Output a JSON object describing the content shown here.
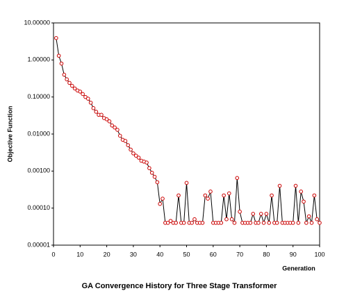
{
  "chart_data": {
    "type": "line",
    "title": "GA Convergence History for Three Stage Transformer",
    "x_label": "Generation",
    "y_label": "Objective Function",
    "log_y": true,
    "grid": false,
    "xlim": [
      0,
      100
    ],
    "xticks": [
      0,
      10,
      20,
      30,
      40,
      50,
      60,
      70,
      80,
      90,
      100
    ],
    "ylim": [
      1e-05,
      10
    ],
    "yticks": [
      {
        "value": 10,
        "label": "10.00000"
      },
      {
        "value": 1,
        "label": "1.00000"
      },
      {
        "value": 0.1,
        "label": "0.10000"
      },
      {
        "value": 0.01,
        "label": "0.01000"
      },
      {
        "value": 0.001,
        "label": "0.00100"
      },
      {
        "value": 0.0001,
        "label": "0.00010"
      },
      {
        "value": 1e-05,
        "label": "0.00001"
      }
    ],
    "line_color": "#000000",
    "marker_color": "#cc0000",
    "x": [
      1,
      2,
      3,
      4,
      5,
      6,
      7,
      8,
      9,
      10,
      11,
      12,
      13,
      14,
      15,
      16,
      17,
      18,
      19,
      20,
      21,
      22,
      23,
      24,
      25,
      26,
      27,
      28,
      29,
      30,
      31,
      32,
      33,
      34,
      35,
      36,
      37,
      38,
      39,
      40,
      41,
      42,
      43,
      44,
      45,
      46,
      47,
      48,
      49,
      50,
      51,
      52,
      53,
      54,
      55,
      56,
      57,
      58,
      59,
      60,
      61,
      62,
      63,
      64,
      65,
      66,
      67,
      68,
      69,
      70,
      71,
      72,
      73,
      74,
      75,
      76,
      77,
      78,
      79,
      80,
      81,
      82,
      83,
      84,
      85,
      86,
      87,
      88,
      89,
      90,
      91,
      92,
      93,
      94,
      95,
      96,
      97,
      98,
      99,
      100
    ],
    "values": [
      3.9,
      1.3,
      0.8,
      0.4,
      0.3,
      0.24,
      0.2,
      0.17,
      0.15,
      0.14,
      0.12,
      0.1,
      0.09,
      0.07,
      0.05,
      0.04,
      0.033,
      0.033,
      0.027,
      0.025,
      0.022,
      0.017,
      0.015,
      0.013,
      0.009,
      0.007,
      0.0065,
      0.005,
      0.0038,
      0.003,
      0.0026,
      0.0023,
      0.0019,
      0.0018,
      0.0017,
      0.0012,
      0.0009,
      0.0007,
      0.0005,
      0.00013,
      0.00018,
      4e-05,
      4e-05,
      4.5e-05,
      4e-05,
      4e-05,
      0.00022,
      4e-05,
      4e-05,
      0.00048,
      4e-05,
      4e-05,
      5e-05,
      4e-05,
      4e-05,
      4e-05,
      0.00022,
      0.00018,
      0.00028,
      4e-05,
      4e-05,
      4e-05,
      4e-05,
      0.00022,
      5e-05,
      0.00025,
      5e-05,
      4e-05,
      0.00065,
      8e-05,
      4e-05,
      4e-05,
      4e-05,
      4e-05,
      7e-05,
      4e-05,
      4e-05,
      7e-05,
      4e-05,
      7e-05,
      4e-05,
      0.00022,
      4e-05,
      4e-05,
      0.0004,
      4e-05,
      4e-05,
      4e-05,
      4e-05,
      4e-05,
      0.0004,
      4e-05,
      0.00028,
      0.00015,
      4e-05,
      6e-05,
      4e-05,
      0.00022,
      5e-05,
      4e-05
    ]
  }
}
